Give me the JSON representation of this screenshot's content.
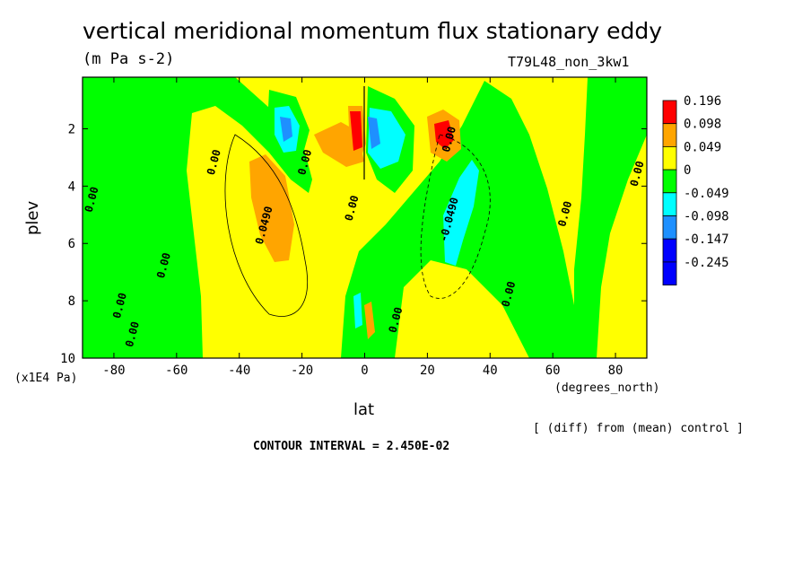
{
  "chart_data": {
    "type": "heatmap",
    "title": "vertical meridional momentum flux stationary eddy",
    "units": "(m Pa s-2)",
    "run_id": "T79L48_non_3kw1",
    "xlabel": "lat",
    "x_unit": "(degrees_north)",
    "ylabel": "plev",
    "y_unit": "(x1E4 Pa)",
    "note": "[ (diff) from (mean) control ]",
    "contour_interval": "CONTOUR INTERVAL = 2.450E-02",
    "xlim": [
      -90,
      90
    ],
    "ylim": [
      10,
      0.2
    ],
    "x_ticks": [
      -80,
      -60,
      -40,
      -20,
      0,
      20,
      40,
      60,
      80
    ],
    "y_ticks": [
      2,
      4,
      6,
      8,
      10
    ],
    "legend": {
      "placement": "right",
      "levels": [
        "0.196",
        "0.098",
        "0.049",
        "0",
        "-0.049",
        "-0.098",
        "-0.147",
        "-0.245"
      ],
      "colors": [
        "#ff0000",
        "#ffa500",
        "#ffff00",
        "#00ff00",
        "#00ffff",
        "#1e90ff",
        "#0000ff",
        "#0000ff"
      ]
    },
    "contour_labels": [
      {
        "text": "0.00",
        "lat": -86,
        "plev": 4.5
      },
      {
        "text": "0.00",
        "lat": -77,
        "plev": 8.2
      },
      {
        "text": "0.00",
        "lat": -73,
        "plev": 9.2
      },
      {
        "text": "0.00",
        "lat": -63,
        "plev": 6.8
      },
      {
        "text": "0.00",
        "lat": -47,
        "plev": 3.2
      },
      {
        "text": "0.0490",
        "lat": -31,
        "plev": 5.4
      },
      {
        "text": "0.00",
        "lat": -18,
        "plev": 3.2
      },
      {
        "text": "0.00",
        "lat": -3,
        "plev": 4.8
      },
      {
        "text": "0.00",
        "lat": 11,
        "plev": 8.7
      },
      {
        "text": "0.00",
        "lat": 28,
        "plev": 2.4
      },
      {
        "text": "-0.0490",
        "lat": 28,
        "plev": 5.2
      },
      {
        "text": "0.00",
        "lat": 47,
        "plev": 7.8
      },
      {
        "text": "0.00",
        "lat": 65,
        "plev": 5.0
      },
      {
        "text": "0.00",
        "lat": 88,
        "plev": 3.6
      }
    ]
  }
}
